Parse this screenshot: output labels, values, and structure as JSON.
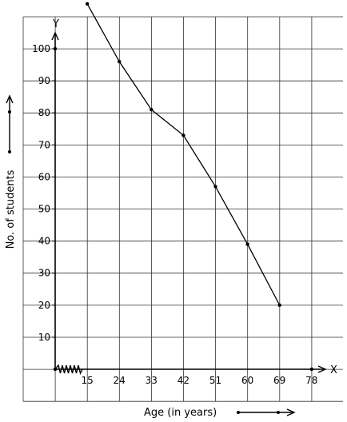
{
  "chart_data": {
    "type": "line",
    "title": "",
    "xlabel": "Age (in years)",
    "ylabel": "No. of students",
    "x_axis_letter": "X",
    "y_axis_letter": "Y",
    "x_ticks": [
      "15",
      "24",
      "33",
      "42",
      "51",
      "60",
      "69",
      "78"
    ],
    "y_ticks": [
      "10",
      "20",
      "30",
      "40",
      "50",
      "60",
      "70",
      "80",
      "90",
      "100"
    ],
    "xlim": [
      6,
      87
    ],
    "ylim": [
      -10,
      110
    ],
    "grid": true,
    "series": [
      {
        "x": [
          15,
          24,
          33,
          42,
          51,
          60,
          69
        ],
        "y": [
          114,
          96,
          81,
          73,
          57,
          39,
          20
        ]
      }
    ],
    "axis_points": [
      {
        "x": 6,
        "y": 0
      },
      {
        "x": 6,
        "y": 100
      },
      {
        "x": 78,
        "y": 0
      }
    ]
  }
}
